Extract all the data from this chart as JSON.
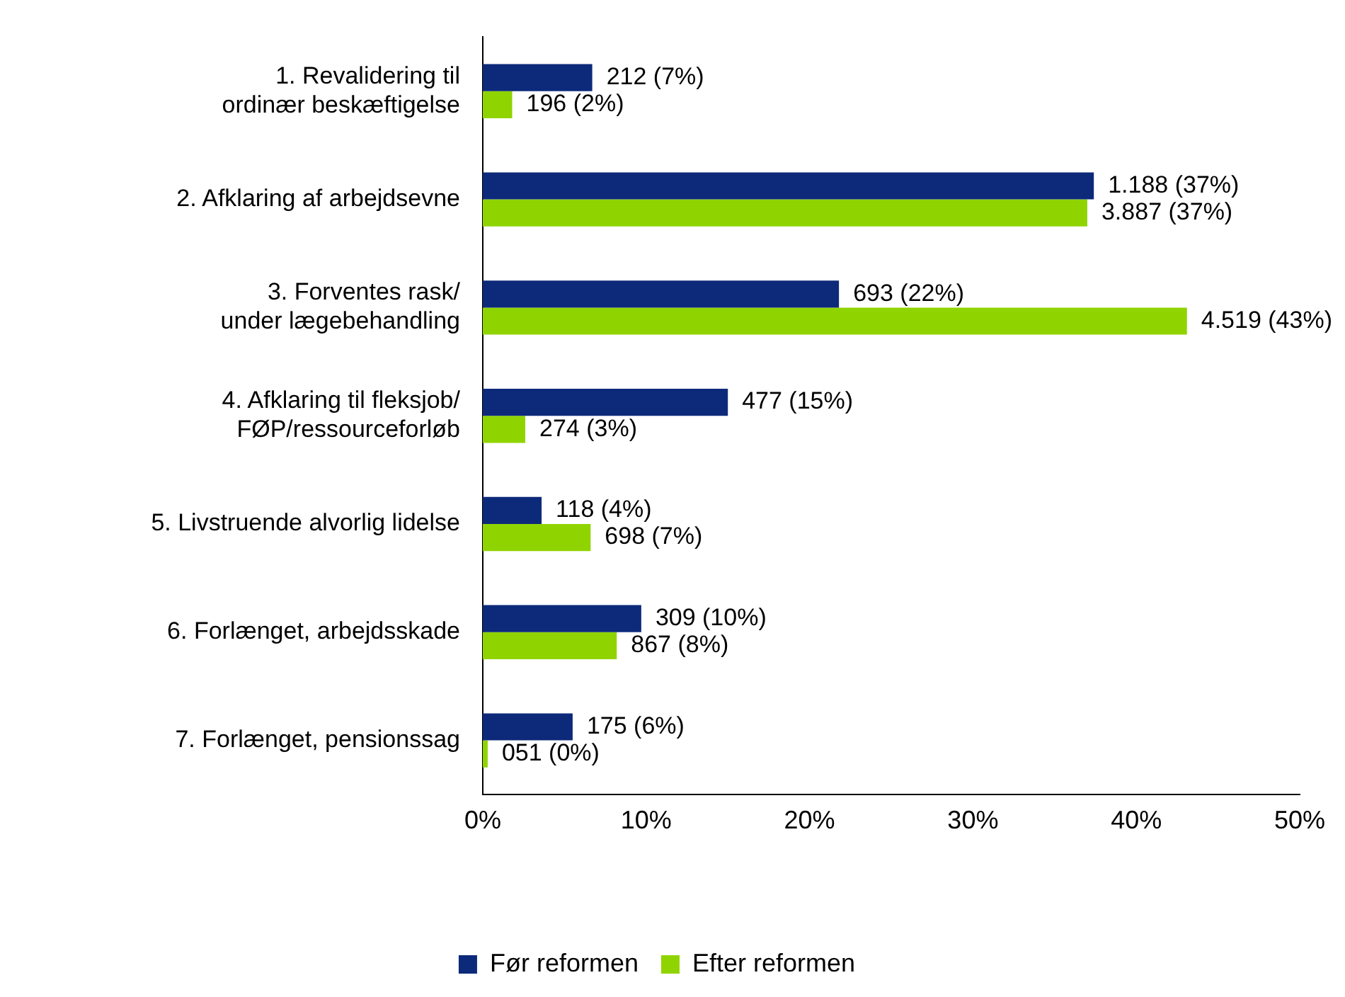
{
  "chart_data": {
    "type": "bar",
    "orientation": "horizontal",
    "categories": [
      "1. Revalidering til\nordinær beskæftigelse",
      "2. Afklaring af arbejdsevne",
      "3. Forventes rask/\nunder lægebehandling",
      "4. Afklaring til fleksjob/\nFØP/ressourceforløb",
      "5. Livstruende alvorlig lidelse",
      "6. Forlænget, arbejdsskade",
      "7. Forlænget, pensionssag"
    ],
    "series": [
      {
        "name": "Før reformen",
        "color": "#0d2a7a",
        "values": [
          6.7,
          37.4,
          21.8,
          15.0,
          3.6,
          9.7,
          5.5
        ],
        "value_labels": [
          "212 (7%)",
          "1.188 (37%)",
          "693 (22%)",
          "477 (15%)",
          "118 (4%)",
          "309 (10%)",
          "175 (6%)"
        ]
      },
      {
        "name": "Efter reformen",
        "color": "#8fd400",
        "values": [
          1.8,
          37.0,
          43.1,
          2.6,
          6.6,
          8.2,
          0.3
        ],
        "value_labels": [
          "196 (2%)",
          "3.887 (37%)",
          "4.519 (43%)",
          "274 (3%)",
          "698 (7%)",
          "867 (8%)",
          "051 (0%)"
        ]
      }
    ],
    "xlim": [
      0,
      50
    ],
    "xticks": [
      {
        "value": 0,
        "label": "0%"
      },
      {
        "value": 10,
        "label": "10%"
      },
      {
        "value": 20,
        "label": "20%"
      },
      {
        "value": 30,
        "label": "30%"
      },
      {
        "value": 40,
        "label": "40%"
      },
      {
        "value": 50,
        "label": "50%"
      }
    ],
    "grid": false,
    "legend": "bottom"
  }
}
